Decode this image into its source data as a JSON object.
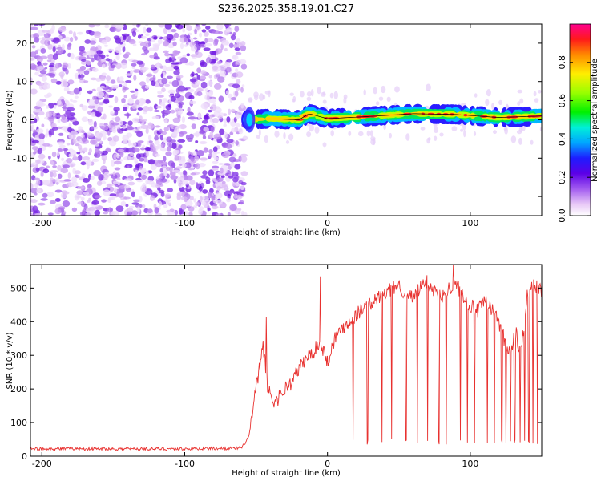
{
  "title": "S236.2025.358.19.01.C27",
  "chart_data": [
    {
      "type": "heatmap",
      "xlabel": "Height of straight line (km)",
      "ylabel": "Frequency (Hz)",
      "xlim": [
        -208,
        150
      ],
      "ylim": [
        -25,
        25
      ],
      "x_ticks": [
        -200,
        -100,
        0,
        100
      ],
      "x_tick_labels": [
        "-200",
        "-100",
        "0",
        "100"
      ],
      "y_ticks": [
        -20,
        -10,
        0,
        10,
        20
      ],
      "y_tick_labels": [
        "-20",
        "-10",
        "0",
        "10",
        "20"
      ],
      "noise_region_x": [
        -208,
        -58
      ],
      "signal_onset_x": -58,
      "signal_track": [
        {
          "x": -58,
          "f": 0.0
        },
        {
          "x": -40,
          "f": 0.3
        },
        {
          "x": -20,
          "f": 0.0
        },
        {
          "x": -13,
          "f": 1.6
        },
        {
          "x": 0,
          "f": 0.3
        },
        {
          "x": 30,
          "f": 0.9
        },
        {
          "x": 60,
          "f": 1.6
        },
        {
          "x": 90,
          "f": 1.4
        },
        {
          "x": 120,
          "f": 0.6
        },
        {
          "x": 150,
          "f": 1.0
        }
      ],
      "colorbar": {
        "label": "Normalized spectral amplitude",
        "range": [
          0.0,
          1.0
        ],
        "ticks": [
          0.0,
          0.2,
          0.4,
          0.6,
          0.8
        ],
        "tick_labels": [
          "0.0",
          "0.2",
          "0.4",
          "0.6",
          "0.8"
        ]
      }
    },
    {
      "type": "line",
      "xlabel": "Height of straight line (km)",
      "ylabel": "SNR (10 * v/v)",
      "xlim": [
        -208,
        150
      ],
      "ylim": [
        0,
        570
      ],
      "x_ticks": [
        -200,
        -100,
        0,
        100
      ],
      "x_tick_labels": [
        "-200",
        "-100",
        "0",
        "100"
      ],
      "y_ticks": [
        0,
        100,
        200,
        300,
        400,
        500
      ],
      "y_tick_labels": [
        "0",
        "100",
        "200",
        "300",
        "400",
        "500"
      ],
      "line_color": "#e8312f",
      "envelope_x": [
        -208,
        -150,
        -100,
        -60,
        -55,
        -50,
        -45,
        -42,
        -38,
        -35,
        -30,
        -25,
        -20,
        -15,
        -10,
        -5,
        0,
        5,
        10,
        15,
        20,
        25,
        30,
        35,
        40,
        45,
        50,
        55,
        60,
        65,
        70,
        75,
        80,
        85,
        90,
        95,
        100,
        105,
        110,
        115,
        120,
        125,
        128,
        132,
        135,
        140,
        145,
        150
      ],
      "envelope_y": [
        22,
        22,
        22,
        24,
        60,
        200,
        330,
        210,
        160,
        170,
        200,
        220,
        260,
        290,
        310,
        340,
        280,
        350,
        380,
        400,
        420,
        440,
        450,
        470,
        480,
        500,
        510,
        480,
        470,
        500,
        520,
        490,
        470,
        500,
        510,
        480,
        450,
        430,
        460,
        440,
        400,
        330,
        310,
        370,
        290,
        480,
        510,
        490
      ],
      "spikes": [
        {
          "x": -43,
          "y": 415
        },
        {
          "x": -5,
          "y": 535
        },
        {
          "x": 88,
          "y": 570
        }
      ],
      "dropouts_x": [
        18,
        28,
        38,
        45,
        55,
        63,
        70,
        78,
        83,
        93,
        98,
        103,
        112,
        117,
        122,
        125,
        128,
        131,
        135,
        138,
        141,
        144,
        147
      ]
    }
  ]
}
